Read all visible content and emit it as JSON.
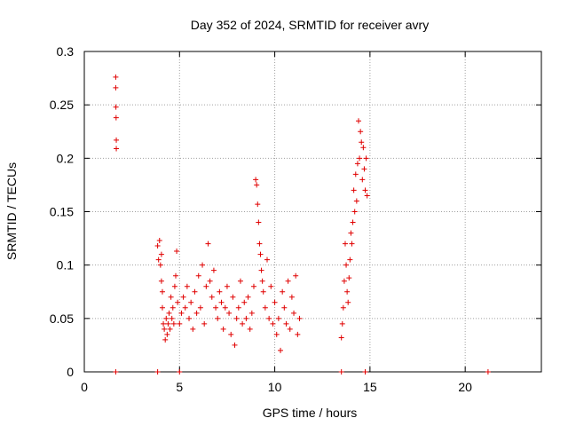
{
  "chart_data": {
    "type": "scatter",
    "title": "Day 352 of 2024, SRMTID for receiver avry",
    "xlabel": "GPS time / hours",
    "ylabel": "SRMTID / TECUs",
    "xlim": [
      0,
      24
    ],
    "ylim": [
      0,
      0.3
    ],
    "x_ticks": [
      0,
      5,
      10,
      15,
      20
    ],
    "y_ticks": [
      0,
      0.05,
      0.1,
      0.15,
      0.2,
      0.25,
      0.3
    ],
    "x_tick_labels": [
      "0",
      "5",
      "10",
      "15",
      "20"
    ],
    "y_tick_labels": [
      "0",
      "0.05",
      "0.1",
      "0.15",
      "0.2",
      "0.25",
      "0.3"
    ],
    "grid": true,
    "marker": "plus",
    "marker_color": "#e00000",
    "series": [
      {
        "points": [
          [
            1.65,
            0.276
          ],
          [
            1.65,
            0.266
          ],
          [
            1.66,
            0.248
          ],
          [
            1.67,
            0.238
          ],
          [
            1.68,
            0.217
          ],
          [
            1.68,
            0.209
          ],
          [
            3.85,
            0.118
          ],
          [
            3.9,
            0.105
          ],
          [
            3.95,
            0.123
          ],
          [
            4.0,
            0.1
          ],
          [
            4.05,
            0.11
          ],
          [
            4.05,
            0.085
          ],
          [
            4.1,
            0.075
          ],
          [
            4.1,
            0.06
          ],
          [
            4.15,
            0.045
          ],
          [
            4.2,
            0.04
          ],
          [
            4.25,
            0.03
          ],
          [
            4.3,
            0.05
          ],
          [
            4.35,
            0.035
          ],
          [
            4.4,
            0.045
          ],
          [
            4.45,
            0.055
          ],
          [
            4.5,
            0.04
          ],
          [
            4.55,
            0.07
          ],
          [
            4.6,
            0.05
          ],
          [
            4.65,
            0.06
          ],
          [
            4.7,
            0.045
          ],
          [
            4.75,
            0.08
          ],
          [
            4.8,
            0.09
          ],
          [
            4.85,
            0.113
          ],
          [
            4.9,
            0.065
          ],
          [
            5.0,
            0.045
          ],
          [
            5.1,
            0.055
          ],
          [
            5.2,
            0.07
          ],
          [
            5.3,
            0.06
          ],
          [
            5.4,
            0.08
          ],
          [
            5.5,
            0.05
          ],
          [
            5.6,
            0.065
          ],
          [
            5.7,
            0.04
          ],
          [
            5.8,
            0.075
          ],
          [
            5.9,
            0.055
          ],
          [
            6.0,
            0.09
          ],
          [
            6.1,
            0.06
          ],
          [
            6.2,
            0.1
          ],
          [
            6.3,
            0.045
          ],
          [
            6.4,
            0.08
          ],
          [
            6.5,
            0.12
          ],
          [
            6.6,
            0.085
          ],
          [
            6.7,
            0.07
          ],
          [
            6.8,
            0.095
          ],
          [
            6.9,
            0.06
          ],
          [
            7.0,
            0.05
          ],
          [
            7.1,
            0.075
          ],
          [
            7.2,
            0.065
          ],
          [
            7.3,
            0.04
          ],
          [
            7.4,
            0.06
          ],
          [
            7.5,
            0.08
          ],
          [
            7.6,
            0.055
          ],
          [
            7.7,
            0.035
          ],
          [
            7.8,
            0.07
          ],
          [
            7.9,
            0.025
          ],
          [
            8.0,
            0.05
          ],
          [
            8.1,
            0.06
          ],
          [
            8.2,
            0.085
          ],
          [
            8.3,
            0.045
          ],
          [
            8.4,
            0.065
          ],
          [
            8.5,
            0.05
          ],
          [
            8.6,
            0.07
          ],
          [
            8.7,
            0.04
          ],
          [
            8.8,
            0.055
          ],
          [
            8.9,
            0.08
          ],
          [
            9.0,
            0.18
          ],
          [
            9.05,
            0.175
          ],
          [
            9.1,
            0.157
          ],
          [
            9.15,
            0.14
          ],
          [
            9.2,
            0.12
          ],
          [
            9.25,
            0.11
          ],
          [
            9.3,
            0.095
          ],
          [
            9.35,
            0.085
          ],
          [
            9.4,
            0.075
          ],
          [
            9.5,
            0.06
          ],
          [
            9.6,
            0.105
          ],
          [
            9.7,
            0.05
          ],
          [
            9.8,
            0.08
          ],
          [
            9.9,
            0.045
          ],
          [
            10.0,
            0.065
          ],
          [
            10.1,
            0.035
          ],
          [
            10.2,
            0.05
          ],
          [
            10.3,
            0.02
          ],
          [
            10.4,
            0.075
          ],
          [
            10.5,
            0.06
          ],
          [
            10.6,
            0.045
          ],
          [
            10.7,
            0.085
          ],
          [
            10.8,
            0.04
          ],
          [
            10.9,
            0.07
          ],
          [
            11.0,
            0.055
          ],
          [
            11.1,
            0.09
          ],
          [
            11.2,
            0.035
          ],
          [
            11.3,
            0.05
          ],
          [
            13.5,
            0.032
          ],
          [
            13.55,
            0.045
          ],
          [
            13.6,
            0.06
          ],
          [
            13.65,
            0.085
          ],
          [
            13.7,
            0.12
          ],
          [
            13.75,
            0.1
          ],
          [
            13.8,
            0.075
          ],
          [
            13.85,
            0.065
          ],
          [
            13.9,
            0.088
          ],
          [
            13.95,
            0.105
          ],
          [
            14.0,
            0.13
          ],
          [
            14.05,
            0.12
          ],
          [
            14.1,
            0.14
          ],
          [
            14.15,
            0.17
          ],
          [
            14.2,
            0.15
          ],
          [
            14.25,
            0.185
          ],
          [
            14.3,
            0.16
          ],
          [
            14.35,
            0.195
          ],
          [
            14.4,
            0.235
          ],
          [
            14.45,
            0.2
          ],
          [
            14.5,
            0.225
          ],
          [
            14.55,
            0.215
          ],
          [
            14.6,
            0.18
          ],
          [
            14.65,
            0.21
          ],
          [
            14.7,
            0.19
          ],
          [
            14.75,
            0.17
          ],
          [
            14.8,
            0.2
          ],
          [
            14.85,
            0.165
          ],
          [
            1.65,
            0.0
          ],
          [
            3.85,
            0.0
          ],
          [
            5.0,
            0.0
          ],
          [
            13.5,
            0.0
          ],
          [
            14.75,
            0.0
          ],
          [
            21.2,
            0.0
          ]
        ]
      }
    ]
  }
}
